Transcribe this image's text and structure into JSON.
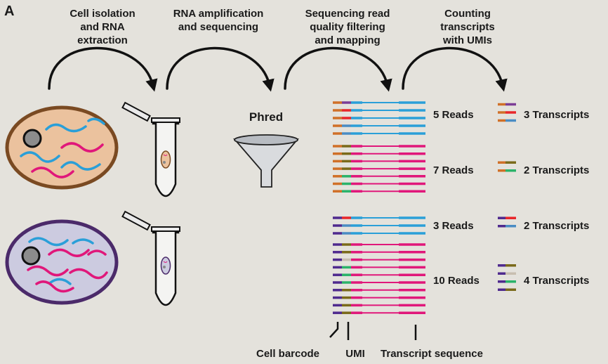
{
  "panel_label": "A",
  "steps": [
    {
      "lines": [
        "Cell isolation",
        "and RNA",
        "extraction"
      ]
    },
    {
      "lines": [
        "RNA amplification",
        "and sequencing"
      ]
    },
    {
      "lines": [
        "Sequencing read",
        "quality filtering",
        "and mapping"
      ]
    },
    {
      "lines": [
        "Counting",
        "transcripts",
        "with UMIs"
      ]
    }
  ],
  "filter_label": "Phred",
  "colors": {
    "background": "#e4e2dc",
    "cell1_fill": "#ebc29e",
    "cell1_border": "#7a4a22",
    "cell2_fill": "#cccbe0",
    "cell2_border": "#4b2a6a",
    "rna_blue": "#2a9fd8",
    "rna_pink": "#e0177a",
    "barcode_orange": "#d07028",
    "barcode_purple": "#4f2a8e",
    "umi_red": "#e8262a",
    "umi_purple": "#7b3d96",
    "umi_olive": "#7a6a1a",
    "umi_blue": "#4a8cc4",
    "umi_green": "#2bb36a",
    "umi_gray": "#c8beb0"
  },
  "groups": [
    {
      "reads_label": "5 Reads",
      "transcripts_label": "3 Transcripts",
      "barcode": "orange",
      "seq": "blue",
      "reads": [
        "purple",
        "red",
        "red",
        "blue",
        "blue"
      ],
      "unique": [
        "purple",
        "red",
        "blue"
      ]
    },
    {
      "reads_label": "7 Reads",
      "transcripts_label": "2 Transcripts",
      "barcode": "orange",
      "seq": "pink",
      "reads": [
        "olive",
        "olive",
        "olive",
        "olive",
        "green",
        "green",
        "green"
      ],
      "unique": [
        "olive",
        "green"
      ]
    },
    {
      "reads_label": "3 Reads",
      "transcripts_label": "2 Transcripts",
      "barcode": "purple",
      "seq": "blue",
      "reads": [
        "red",
        "blue",
        "blue"
      ],
      "unique": [
        "red",
        "blue"
      ]
    },
    {
      "reads_label": "10 Reads",
      "transcripts_label": "4 Transcripts",
      "barcode": "purple",
      "seq": "pink",
      "reads": [
        "olive",
        "olive",
        "gray",
        "green",
        "green",
        "green",
        "olive",
        "olive",
        "olive",
        "olive"
      ],
      "unique": [
        "olive",
        "gray",
        "green",
        "olive"
      ]
    }
  ],
  "legend": {
    "cell_barcode": "Cell barcode",
    "umi": "UMI",
    "transcript_sequence": "Transcript sequence"
  },
  "icons": [
    "curved-arrow-icon",
    "cell-icon",
    "tube-icon",
    "funnel-icon"
  ]
}
